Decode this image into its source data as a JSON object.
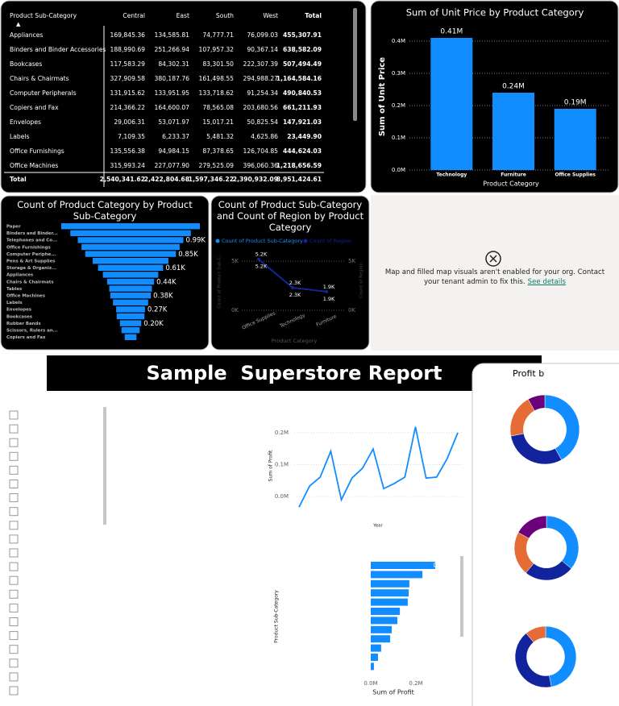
{
  "table": {
    "columns": [
      "Product Sub-Category",
      "Central",
      "East",
      "South",
      "West",
      "Total"
    ],
    "rows": [
      [
        "Appliances",
        "169,845.36",
        "134,585.81",
        "74,777.71",
        "76,099.03",
        "455,307.91"
      ],
      [
        "Binders and Binder Accessories",
        "188,990.69",
        "251,266.94",
        "107,957.32",
        "90,367.14",
        "638,582.09"
      ],
      [
        "Bookcases",
        "117,583.29",
        "84,302.31",
        "83,301.50",
        "222,307.39",
        "507,494.49"
      ],
      [
        "Chairs & Chairmats",
        "327,909.58",
        "380,187.76",
        "161,498.55",
        "294,988.27",
        "1,164,584.16"
      ],
      [
        "Computer Peripherals",
        "131,915.62",
        "133,951.95",
        "133,718.62",
        "91,254.34",
        "490,840.53"
      ],
      [
        "Copiers and Fax",
        "214,366.22",
        "164,600.07",
        "78,565.08",
        "203,680.56",
        "661,211.93"
      ],
      [
        "Envelopes",
        "29,006.31",
        "53,071.97",
        "15,017.21",
        "50,825.54",
        "147,921.03"
      ],
      [
        "Labels",
        "7,109.35",
        "6,233.37",
        "5,481.32",
        "4,625.86",
        "23,449.90"
      ],
      [
        "Office Furnishings",
        "135,556.38",
        "94,984.15",
        "87,378.65",
        "126,704.85",
        "444,624.03"
      ],
      [
        "Office Machines",
        "315,993.24",
        "227,077.90",
        "279,525.09",
        "396,060.36",
        "1,218,656.59"
      ]
    ],
    "total": [
      "Total",
      "2,540,341.62",
      "2,422,804.68",
      "1,597,346.22",
      "2,390,932.09",
      "8,951,424.61"
    ]
  },
  "map_message": {
    "text": "Map and filled map visuals aren't enabled for your org. Contact your tenant admin to fix this.",
    "link": "See details"
  },
  "report_title": "Sample  Superstore Report",
  "card_title": "Profit b",
  "chart_data": [
    {
      "type": "bar",
      "title": "Sum of Unit Price by Product Category",
      "x_label": "Product Category",
      "y_label": "Sum of Unit Price",
      "categories": [
        "Technology",
        "Furniture",
        "Office Supplies"
      ],
      "values": [
        410000,
        240000,
        190000
      ],
      "value_labels": [
        "0.41M",
        "0.24M",
        "0.19M"
      ],
      "color": "#118dff",
      "ylim": [
        0,
        430000
      ],
      "yticks": [
        {
          "value": 0,
          "label": "0.0M"
        },
        {
          "value": 100000,
          "label": "0.1M"
        },
        {
          "value": 200000,
          "label": "0.2M"
        },
        {
          "value": 300000,
          "label": "0.3M"
        },
        {
          "value": 400000,
          "label": "0.4M"
        }
      ],
      "grid": true
    },
    {
      "type": "funnel",
      "title": "Count of Product Category by Product Sub-Category",
      "categories": [
        "Paper",
        "Binders and Binder...",
        "Telephones and Co...",
        "Office Furnishings",
        "Computer Periphe...",
        "Pens & Art Supplies",
        "Storage & Organiz...",
        "Appliances",
        "Chairs & Chairmats",
        "Tables",
        "Office Machines",
        "Labels",
        "Envelopes",
        "Bookcases",
        "Rubber Bands",
        "Scissors, Rulers an...",
        "Copiers and Fax"
      ],
      "values": [
        1300,
        1130,
        990,
        920,
        850,
        710,
        610,
        520,
        440,
        400,
        380,
        330,
        270,
        260,
        200,
        170,
        110
      ],
      "value_labels": [
        null,
        null,
        "0.99K",
        null,
        "0.85K",
        null,
        "0.61K",
        null,
        "0.44K",
        null,
        "0.38K",
        null,
        "0.27K",
        null,
        "0.20K",
        null,
        null
      ],
      "color": "#118dff"
    },
    {
      "type": "line",
      "title": "Count of Product Sub-Category and Count of Region by Product Category",
      "x_label": "Product Category",
      "y_label": "Count of Product Sub-C...",
      "y2_label": "Count of Region",
      "categories": [
        "Office Supplies",
        "Technology",
        "Furniture"
      ],
      "series": [
        {
          "name": "Count of Product Sub-Category",
          "color": "#118dff",
          "values": [
            5200,
            2300,
            1900
          ],
          "value_labels": [
            "5.2K",
            "2.3K",
            "1.9K"
          ]
        },
        {
          "name": "Count of Region",
          "color": "#12239e",
          "axis": "y2",
          "values": [
            5200,
            2300,
            1900
          ],
          "value_labels": [
            "5.2K",
            "2.3K",
            "1.9K"
          ]
        }
      ],
      "ylim": [
        0,
        6000
      ],
      "yticks": [
        {
          "value": 0,
          "label": "0K"
        },
        {
          "value": 5000,
          "label": "5K"
        }
      ],
      "y2lim": [
        0,
        6000
      ],
      "y2ticks": [
        {
          "value": 0,
          "label": "0K"
        },
        {
          "value": 5000,
          "label": "5K"
        }
      ],
      "grid": true,
      "legend": "top"
    },
    {
      "type": "line",
      "x_label": "Year",
      "y_label": "Sum of Profit",
      "categories": [
        null,
        null,
        null,
        null,
        null,
        null,
        null,
        null,
        null,
        null,
        null,
        null,
        null,
        null,
        null,
        null
      ],
      "series": [
        {
          "color": "#118dff",
          "values": [
            -33000,
            33000,
            61000,
            142000,
            -10000,
            58000,
            89000,
            149000,
            25000,
            41000,
            61000,
            218000,
            58000,
            61000,
            119000,
            200000
          ]
        }
      ],
      "ylim": [
        -50000,
        240000
      ],
      "yticks": [
        {
          "value": 0,
          "label": "0.0M"
        },
        {
          "value": 100000,
          "label": "0.1M"
        },
        {
          "value": 200000,
          "label": "0.2M"
        }
      ],
      "grid": true
    },
    {
      "type": "bar",
      "orientation": "horizontal",
      "x_label": "Sum of Profit",
      "y_label": "Product Sub-Category",
      "categories": [
        null,
        null,
        null,
        null,
        null,
        null,
        null,
        null,
        null,
        null,
        null,
        null
      ],
      "values": [
        286000,
        229000,
        171000,
        168000,
        164000,
        129000,
        118000,
        93000,
        86000,
        46000,
        32000,
        14000
      ],
      "color": "#118dff",
      "annotation": "0",
      "xlim": [
        0,
        300000
      ],
      "xticks": [
        {
          "value": 0,
          "label": "0.0M"
        },
        {
          "value": 200000,
          "label": "0.2M"
        }
      ]
    },
    {
      "type": "pie",
      "donut": true,
      "values": [
        42,
        30,
        20,
        8
      ],
      "colors": [
        "#118dff",
        "#12239e",
        "#e66c37",
        "#6b007b"
      ]
    },
    {
      "type": "pie",
      "donut": true,
      "values": [
        36,
        25,
        22,
        17
      ],
      "colors": [
        "#118dff",
        "#12239e",
        "#e66c37",
        "#6b007b"
      ]
    },
    {
      "type": "pie",
      "donut": true,
      "values": [
        47,
        42,
        11
      ],
      "colors": [
        "#118dff",
        "#12239e",
        "#e66c37"
      ]
    }
  ]
}
